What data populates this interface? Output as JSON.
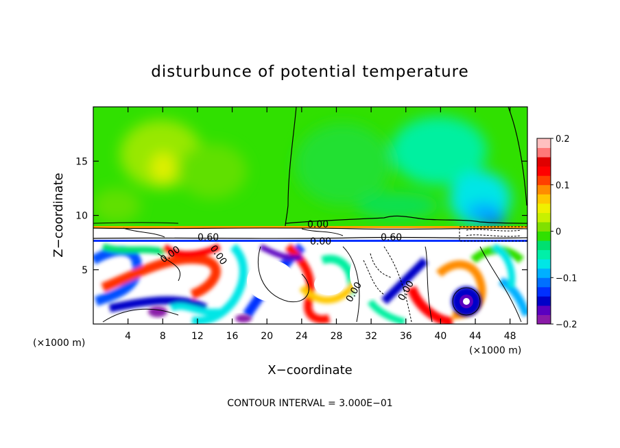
{
  "chart_data": {
    "type": "heatmap",
    "title": "disturbunce of potential temperature",
    "xlabel": "X−coordinate",
    "ylabel": "Z−coordinate",
    "x_unit_label": "(×1000 m)",
    "y_unit_label": "(×1000 m)",
    "xlim": [
      0,
      50
    ],
    "ylim": [
      0,
      20
    ],
    "x_ticks": [
      4,
      8,
      12,
      16,
      20,
      24,
      28,
      32,
      36,
      40,
      44,
      48
    ],
    "x_tick_labels": [
      "4",
      "8",
      "12",
      "16",
      "20",
      "24",
      "28",
      "32",
      "36",
      "40",
      "44",
      "48"
    ],
    "y_ticks": [
      5,
      10,
      15
    ],
    "y_tick_labels": [
      "5",
      "10",
      "15"
    ],
    "colorbar": {
      "range": [
        -0.2,
        0.2
      ],
      "ticks": [
        0.2,
        0.1,
        0,
        -0.1,
        -0.2
      ],
      "tick_labels": [
        "0.2",
        "0.1",
        "0",
        "−0.1",
        "−0.2"
      ],
      "colors": [
        "#8a1aa8",
        "#5a00c0",
        "#0000c8",
        "#0030ff",
        "#0070ff",
        "#00b0ff",
        "#00e6e6",
        "#00f0a8",
        "#00e070",
        "#30e000",
        "#80e000",
        "#c8f000",
        "#f0f000",
        "#ffc800",
        "#ff8c00",
        "#ff4000",
        "#ff0000",
        "#e00000",
        "#ff7878",
        "#ffc0c0"
      ]
    },
    "contour_interval_label": "CONTOUR INTERVAL = 3.000E−01",
    "contour_labels": [
      "0.60",
      "0.00",
      "0.00",
      "0.60",
      "0.00",
      "0.00",
      "0.00",
      "0.00"
    ],
    "colors": {
      "upper_background": "#30e000",
      "lower_background": "#ffffff"
    }
  }
}
